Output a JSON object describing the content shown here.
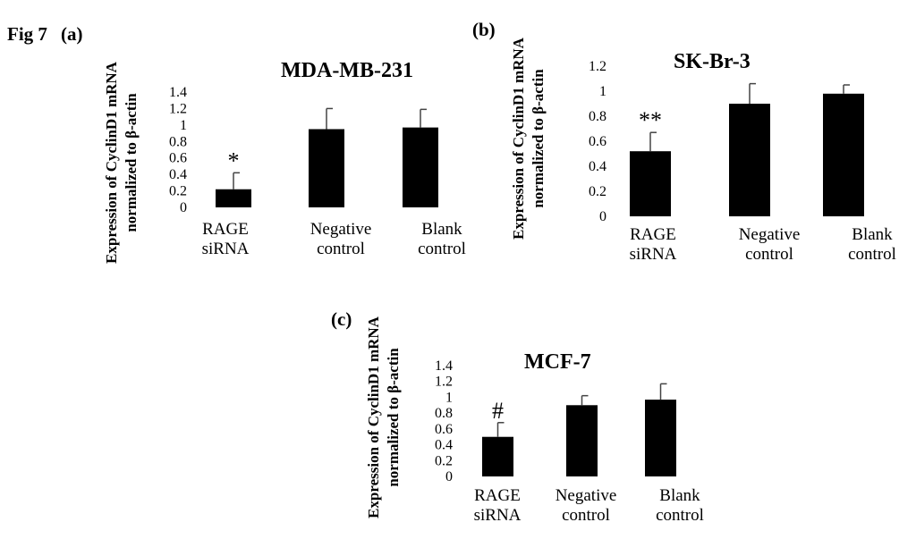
{
  "figure_label": "Fig 7",
  "chart_data": [
    {
      "type": "bar",
      "panel": "(a)",
      "title": "MDA-MB-231",
      "ylabel_lines": [
        "Expression of CyclinD1 mRNA",
        "normalized to β-actin"
      ],
      "yticks": [
        "0",
        "0.2",
        "0.4",
        "0.6",
        "0.8",
        "1",
        "1.2",
        "1.4"
      ],
      "ylim": [
        0,
        1.4
      ],
      "categories": [
        {
          "lines": [
            "RAGE",
            "siRNA"
          ]
        },
        {
          "lines": [
            "Negative",
            "control"
          ]
        },
        {
          "lines": [
            "Blank",
            "control"
          ]
        }
      ],
      "values": [
        0.22,
        0.95,
        0.97
      ],
      "errors": [
        0.2,
        0.25,
        0.22
      ],
      "annotations": [
        "*",
        "",
        ""
      ]
    },
    {
      "type": "bar",
      "panel": "(b)",
      "title": "SK-Br-3",
      "ylabel_lines": [
        "Expression of CyclinD1 mRNA",
        "normalized to β-actin"
      ],
      "yticks": [
        "0",
        "0.2",
        "0.4",
        "0.6",
        "0.8",
        "1",
        "1.2"
      ],
      "ylim": [
        0,
        1.2
      ],
      "categories": [
        {
          "lines": [
            "RAGE",
            "siRNA"
          ]
        },
        {
          "lines": [
            "Negative",
            "control"
          ]
        },
        {
          "lines": [
            "Blank",
            "control"
          ]
        }
      ],
      "values": [
        0.52,
        0.9,
        0.98
      ],
      "errors": [
        0.15,
        0.16,
        0.07
      ],
      "annotations": [
        "**",
        "",
        ""
      ]
    },
    {
      "type": "bar",
      "panel": "(c)",
      "title": "MCF-7",
      "ylabel_lines": [
        "Expression of CyclinD1 mRNA",
        "normalized to β-actin"
      ],
      "yticks": [
        "0",
        "0.2",
        "0.4",
        "0.6",
        "0.8",
        "1",
        "1.2",
        "1.4"
      ],
      "ylim": [
        0,
        1.4
      ],
      "categories": [
        {
          "lines": [
            "RAGE",
            "siRNA"
          ]
        },
        {
          "lines": [
            "Negative",
            "control"
          ]
        },
        {
          "lines": [
            "Blank",
            "control"
          ]
        }
      ],
      "values": [
        0.5,
        0.9,
        0.97
      ],
      "errors": [
        0.18,
        0.12,
        0.2
      ],
      "annotations": [
        "#",
        "",
        ""
      ]
    }
  ]
}
